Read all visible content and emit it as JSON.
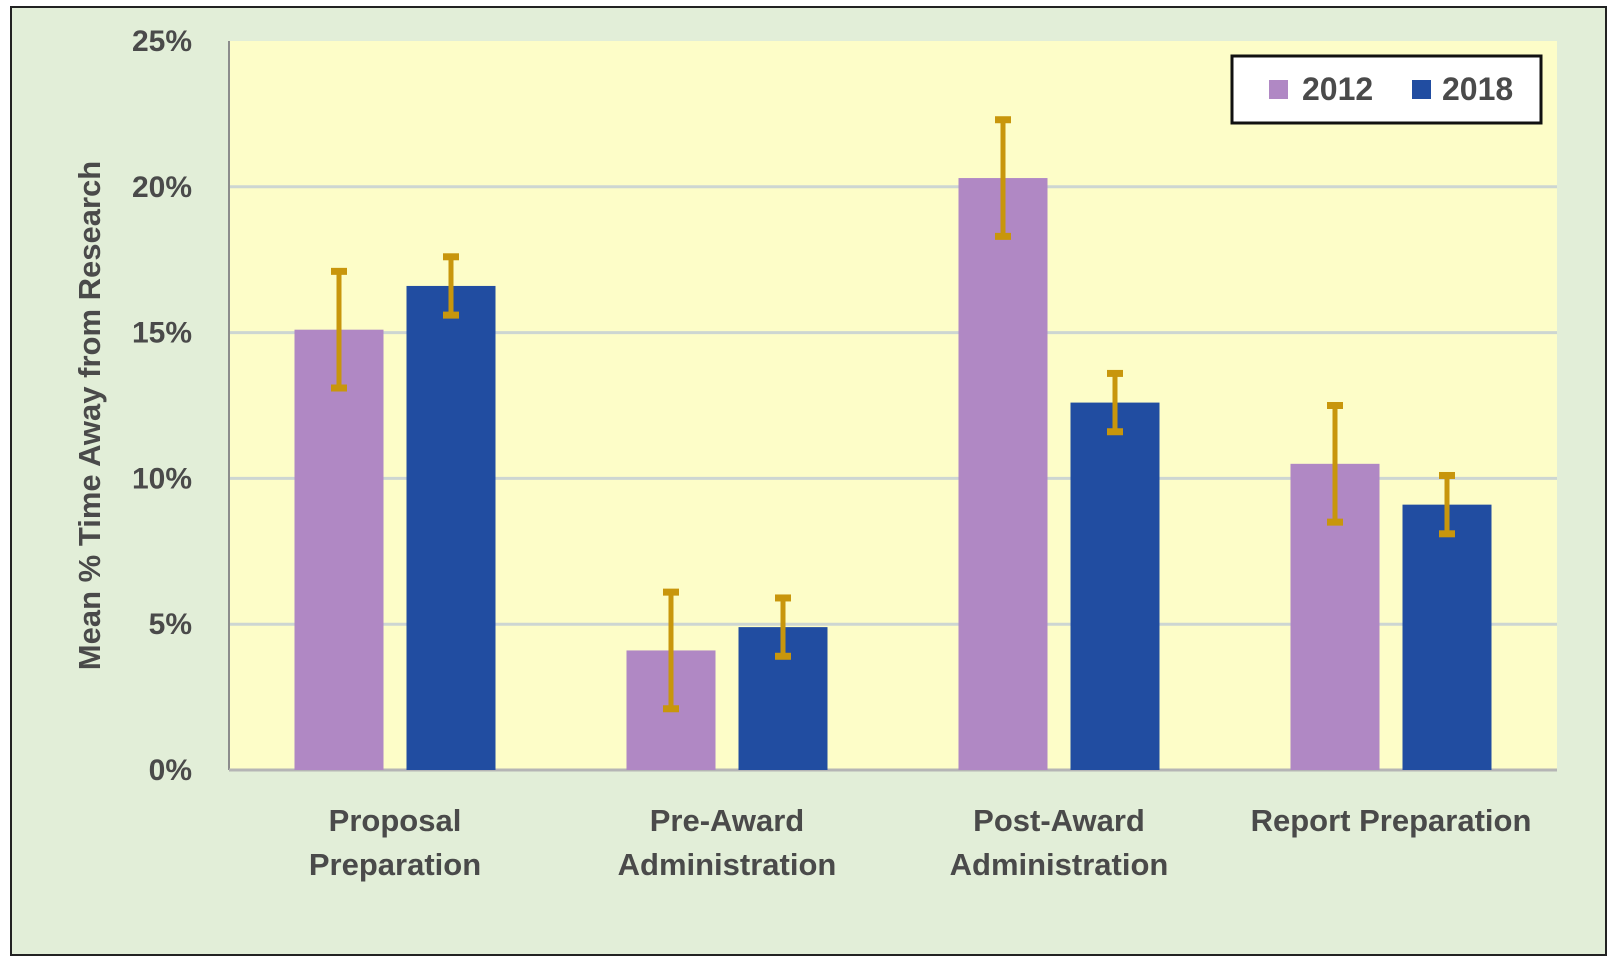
{
  "chart_data": {
    "type": "bar",
    "title": "",
    "xlabel": "",
    "ylabel": "Mean % Time Away from Research",
    "ylim": [
      0,
      25
    ],
    "yticks": [
      "0%",
      "5%",
      "10%",
      "15%",
      "20%",
      "25%"
    ],
    "ytick_values": [
      0,
      5,
      10,
      15,
      20,
      25
    ],
    "categories": [
      [
        "Proposal",
        "Preparation"
      ],
      [
        "Pre-Award",
        "Administration"
      ],
      [
        "Post-Award",
        "Administration"
      ],
      [
        "Report Preparation"
      ]
    ],
    "series": [
      {
        "name": "2012",
        "color": "#b088c4",
        "values": [
          15.1,
          4.1,
          20.3,
          10.5
        ],
        "error_low": [
          13.1,
          2.1,
          18.3,
          8.5
        ],
        "error_high": [
          17.1,
          6.1,
          22.3,
          12.5
        ]
      },
      {
        "name": "2018",
        "color": "#214da1",
        "values": [
          16.6,
          4.9,
          12.6,
          9.1
        ],
        "error_low": [
          15.6,
          3.9,
          11.6,
          8.1
        ],
        "error_high": [
          17.6,
          5.9,
          13.6,
          10.1
        ]
      }
    ],
    "error_bar_color": "#c8960c",
    "grid": true,
    "legend_position": "top-right",
    "plot_background": "#fdfdc8",
    "chart_background": "#e2eed8"
  }
}
